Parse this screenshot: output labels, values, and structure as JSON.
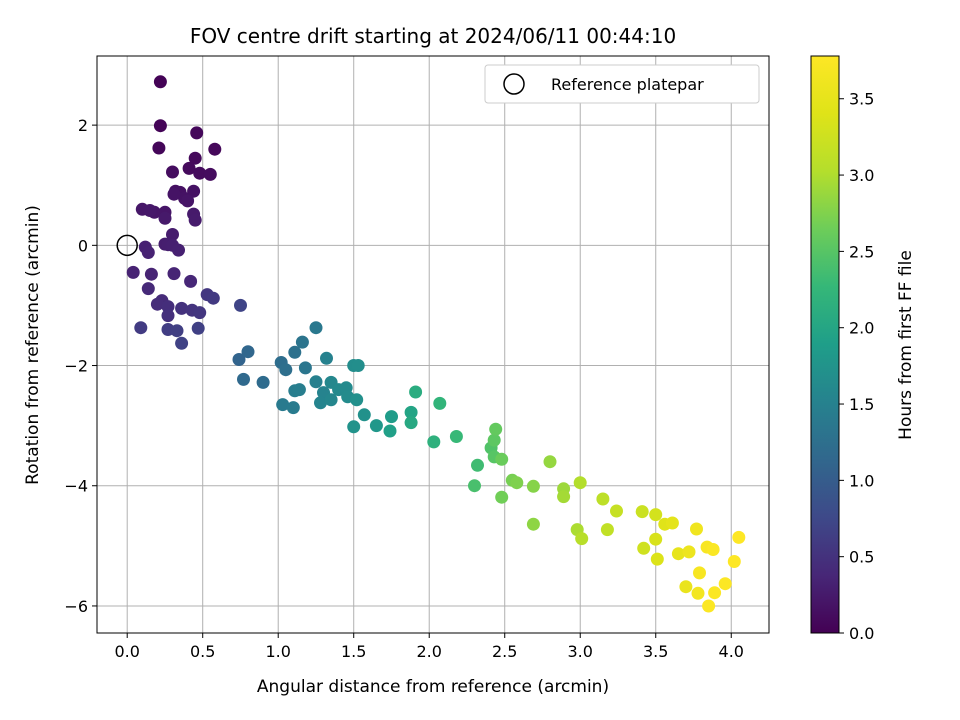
{
  "chart_data": {
    "type": "scatter",
    "title": "FOV centre drift starting at 2024/06/11 00:44:10",
    "xlabel": "Angular distance from reference (arcmin)",
    "ylabel": "Rotation from reference (arcmin)",
    "xlim": [
      -0.2,
      4.25
    ],
    "ylim": [
      -6.45,
      3.15
    ],
    "xticks": [
      0.0,
      0.5,
      1.0,
      1.5,
      2.0,
      2.5,
      3.0,
      3.5,
      4.0
    ],
    "xtick_labels": [
      "0.0",
      "0.5",
      "1.0",
      "1.5",
      "2.0",
      "2.5",
      "3.0",
      "3.5",
      "4.0"
    ],
    "yticks": [
      -6,
      -4,
      -2,
      0,
      2
    ],
    "ytick_labels": [
      "−6",
      "−4",
      "−2",
      "0",
      "2"
    ],
    "grid": true,
    "colormap": "viridis",
    "colorbar": {
      "label": "Hours from first FF file",
      "range": [
        0.0,
        3.78
      ],
      "ticks": [
        0.0,
        0.5,
        1.0,
        1.5,
        2.0,
        2.5,
        3.0,
        3.5
      ],
      "tick_labels": [
        "0.0",
        "0.5",
        "1.0",
        "1.5",
        "2.0",
        "2.5",
        "3.0",
        "3.5"
      ]
    },
    "reference_point": {
      "x": 0.0,
      "y": 0.0
    },
    "legend": {
      "position": "top-right",
      "entries": [
        "Reference platepar"
      ]
    },
    "series": [
      {
        "columns": [
          "x",
          "y",
          "hours"
        ],
        "points": [
          [
            0.22,
            2.72,
            0.02
          ],
          [
            0.22,
            1.99,
            0.03
          ],
          [
            0.21,
            1.62,
            0.05
          ],
          [
            0.46,
            1.87,
            0.06
          ],
          [
            0.58,
            1.6,
            0.07
          ],
          [
            0.45,
            1.45,
            0.08
          ],
          [
            0.41,
            1.28,
            0.09
          ],
          [
            0.48,
            1.2,
            0.1
          ],
          [
            0.55,
            1.18,
            0.11
          ],
          [
            0.3,
            1.22,
            0.12
          ],
          [
            0.32,
            0.9,
            0.14
          ],
          [
            0.35,
            0.88,
            0.15
          ],
          [
            0.44,
            0.9,
            0.16
          ],
          [
            0.38,
            0.78,
            0.17
          ],
          [
            0.31,
            0.85,
            0.18
          ],
          [
            0.4,
            0.74,
            0.19
          ],
          [
            0.25,
            0.55,
            0.2
          ],
          [
            0.18,
            0.55,
            0.21
          ],
          [
            0.1,
            0.6,
            0.22
          ],
          [
            0.15,
            0.58,
            0.23
          ],
          [
            0.25,
            0.45,
            0.24
          ],
          [
            0.44,
            0.52,
            0.25
          ],
          [
            0.45,
            0.42,
            0.26
          ],
          [
            0.3,
            0.18,
            0.27
          ],
          [
            0.25,
            0.02,
            0.28
          ],
          [
            0.27,
            0.01,
            0.29
          ],
          [
            0.3,
            0.0,
            0.3
          ],
          [
            0.34,
            -0.08,
            0.31
          ],
          [
            0.12,
            -0.03,
            0.32
          ],
          [
            0.14,
            -0.12,
            0.33
          ],
          [
            0.04,
            -0.45,
            0.34
          ],
          [
            0.16,
            -0.48,
            0.35
          ],
          [
            0.31,
            -0.47,
            0.36
          ],
          [
            0.42,
            -0.6,
            0.38
          ],
          [
            0.14,
            -0.72,
            0.4
          ],
          [
            0.23,
            -0.92,
            0.42
          ],
          [
            0.2,
            -0.98,
            0.44
          ],
          [
            0.27,
            -1.02,
            0.46
          ],
          [
            0.27,
            -1.17,
            0.48
          ],
          [
            0.36,
            -1.05,
            0.5
          ],
          [
            0.43,
            -1.08,
            0.52
          ],
          [
            0.48,
            -1.12,
            0.54
          ],
          [
            0.53,
            -0.82,
            0.56
          ],
          [
            0.57,
            -0.88,
            0.58
          ],
          [
            0.09,
            -1.37,
            0.6
          ],
          [
            0.27,
            -1.4,
            0.62
          ],
          [
            0.33,
            -1.42,
            0.64
          ],
          [
            0.47,
            -1.38,
            0.66
          ],
          [
            0.36,
            -1.63,
            0.68
          ],
          [
            0.75,
            -1.0,
            0.7
          ],
          [
            0.74,
            -1.9,
            1.1
          ],
          [
            0.8,
            -1.77,
            1.13
          ],
          [
            0.77,
            -2.23,
            1.16
          ],
          [
            0.9,
            -2.28,
            1.19
          ],
          [
            1.02,
            -1.95,
            1.22
          ],
          [
            1.05,
            -2.07,
            1.25
          ],
          [
            1.11,
            -1.78,
            1.28
          ],
          [
            1.16,
            -1.61,
            1.31
          ],
          [
            1.18,
            -2.04,
            1.34
          ],
          [
            1.25,
            -1.37,
            1.37
          ],
          [
            1.03,
            -2.65,
            1.4
          ],
          [
            1.1,
            -2.7,
            1.42
          ],
          [
            1.11,
            -2.42,
            1.44
          ],
          [
            1.14,
            -2.4,
            1.46
          ],
          [
            1.25,
            -2.27,
            1.48
          ],
          [
            1.32,
            -1.88,
            1.5
          ],
          [
            1.3,
            -2.45,
            1.52
          ],
          [
            1.28,
            -2.62,
            1.54
          ],
          [
            1.35,
            -2.57,
            1.56
          ],
          [
            1.35,
            -2.28,
            1.58
          ],
          [
            1.4,
            -2.4,
            1.6
          ],
          [
            1.45,
            -2.37,
            1.62
          ],
          [
            1.46,
            -2.52,
            1.64
          ],
          [
            1.5,
            -2.0,
            1.66
          ],
          [
            1.53,
            -2.0,
            1.68
          ],
          [
            1.52,
            -2.57,
            1.7
          ],
          [
            1.57,
            -2.82,
            1.72
          ],
          [
            1.5,
            -3.02,
            1.74
          ],
          [
            1.65,
            -3.0,
            1.8
          ],
          [
            1.75,
            -2.85,
            1.86
          ],
          [
            1.74,
            -3.09,
            1.92
          ],
          [
            1.88,
            -2.78,
            1.98
          ],
          [
            1.88,
            -2.95,
            2.04
          ],
          [
            1.91,
            -2.44,
            2.1
          ],
          [
            2.03,
            -3.27,
            2.16
          ],
          [
            2.07,
            -2.63,
            2.22
          ],
          [
            2.18,
            -3.18,
            2.28
          ],
          [
            2.32,
            -3.66,
            2.34
          ],
          [
            2.3,
            -4.0,
            2.4
          ],
          [
            2.41,
            -3.37,
            2.46
          ],
          [
            2.43,
            -3.52,
            2.5
          ],
          [
            2.43,
            -3.24,
            2.54
          ],
          [
            2.44,
            -3.06,
            2.58
          ],
          [
            2.48,
            -3.56,
            2.62
          ],
          [
            2.48,
            -4.19,
            2.66
          ],
          [
            2.55,
            -3.91,
            2.7
          ],
          [
            2.58,
            -3.95,
            2.74
          ],
          [
            2.69,
            -4.01,
            2.78
          ],
          [
            2.69,
            -4.64,
            2.82
          ],
          [
            2.8,
            -3.6,
            2.86
          ],
          [
            2.89,
            -4.05,
            2.9
          ],
          [
            2.89,
            -4.18,
            2.94
          ],
          [
            2.98,
            -4.73,
            2.98
          ],
          [
            3.0,
            -3.95,
            3.02
          ],
          [
            3.01,
            -4.88,
            3.06
          ],
          [
            3.15,
            -4.22,
            3.1
          ],
          [
            3.18,
            -4.73,
            3.14
          ],
          [
            3.24,
            -4.42,
            3.18
          ],
          [
            3.41,
            -4.43,
            3.22
          ],
          [
            3.42,
            -5.04,
            3.26
          ],
          [
            3.5,
            -4.48,
            3.3
          ],
          [
            3.5,
            -4.89,
            3.34
          ],
          [
            3.51,
            -5.22,
            3.38
          ],
          [
            3.56,
            -4.64,
            3.42
          ],
          [
            3.61,
            -4.62,
            3.46
          ],
          [
            3.65,
            -5.13,
            3.5
          ],
          [
            3.7,
            -5.68,
            3.54
          ],
          [
            3.72,
            -5.1,
            3.58
          ],
          [
            3.77,
            -4.72,
            3.62
          ],
          [
            3.78,
            -5.79,
            3.66
          ],
          [
            3.79,
            -5.45,
            3.7
          ],
          [
            3.84,
            -5.02,
            3.72
          ],
          [
            3.88,
            -5.06,
            3.74
          ],
          [
            3.85,
            -6.0,
            3.75
          ],
          [
            3.89,
            -5.78,
            3.76
          ],
          [
            3.96,
            -5.63,
            3.77
          ],
          [
            4.02,
            -5.26,
            3.78
          ],
          [
            4.05,
            -4.86,
            3.78
          ]
        ]
      }
    ]
  }
}
